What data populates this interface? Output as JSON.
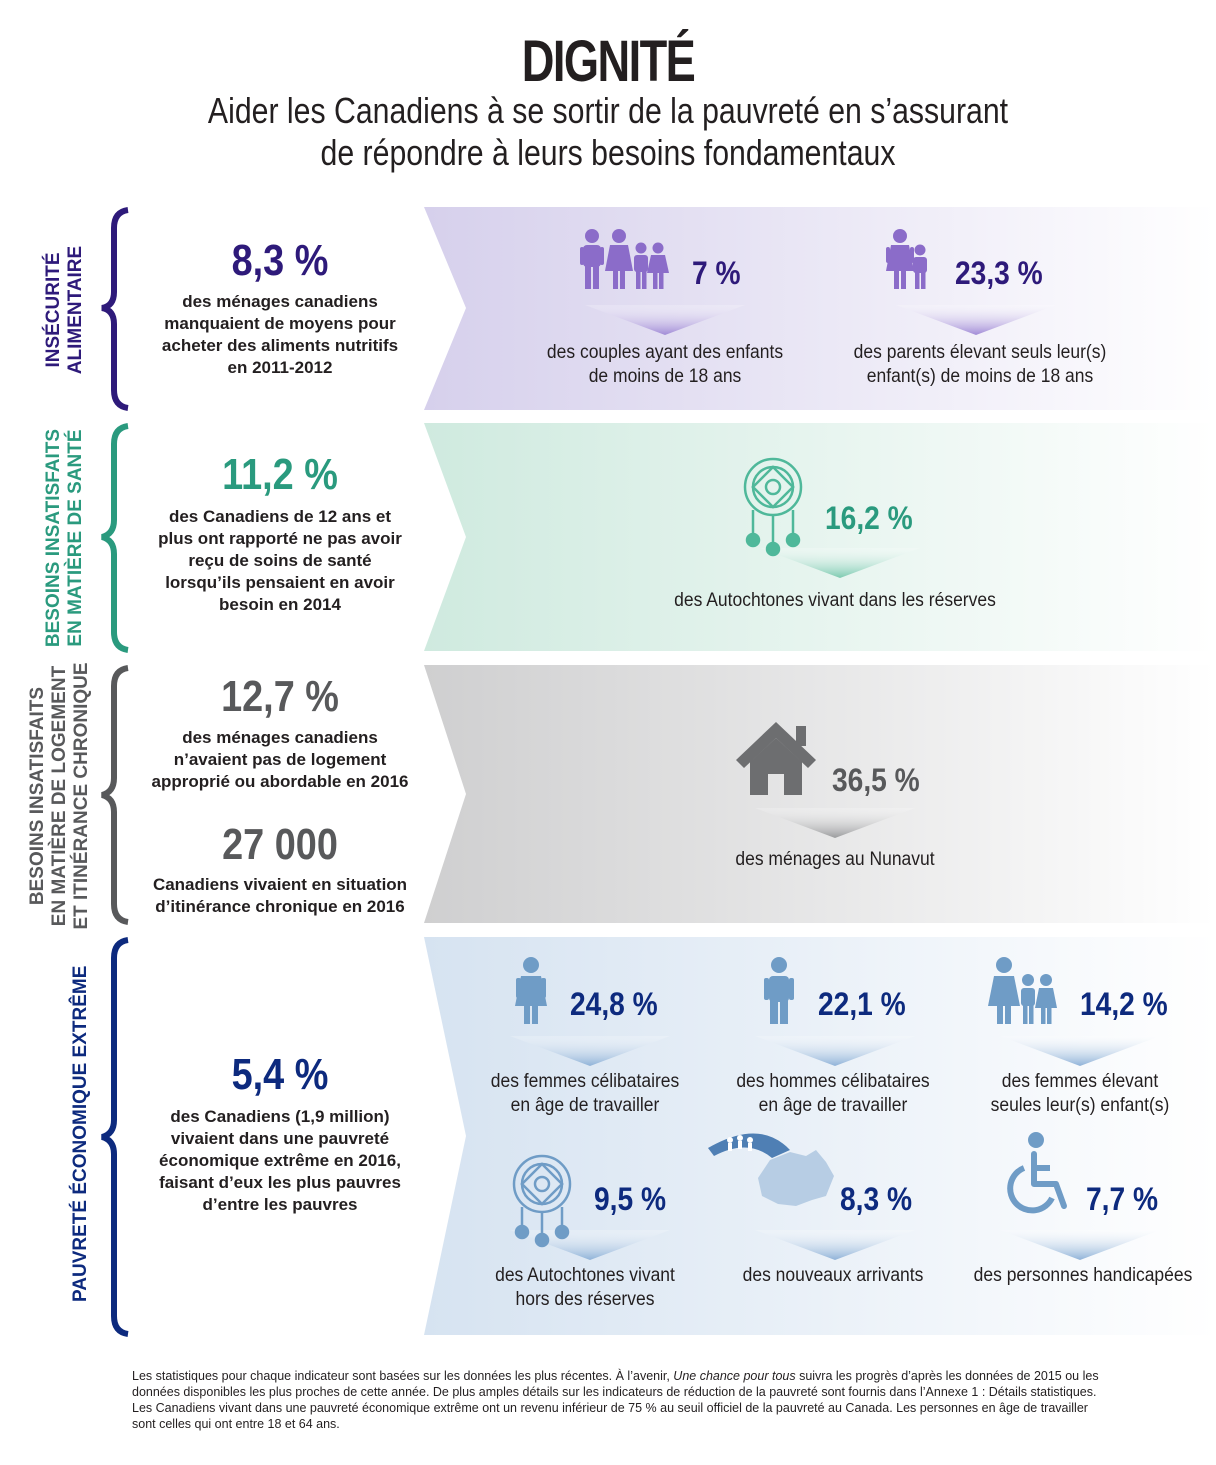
{
  "header": {
    "title": "DIGNITÉ",
    "subtitle_line1": "Aider les Canadiens à se sortir de la pauvreté en s’assurant",
    "subtitle_line2": "de répondre à leurs besoins fondamentaux"
  },
  "colors": {
    "food": "#2e1a7a",
    "health": "#2a9a7e",
    "housing": "#58595b",
    "poverty": "#0d2a7e",
    "food_icon": "#8b6cc9",
    "health_icon": "#4fb89a",
    "housing_icon": "#6d6e70",
    "poverty_icon": "#6f9cc6"
  },
  "sections": {
    "food": {
      "label_lines": [
        "INSÉCURITÉ",
        "ALIMENTAIRE"
      ],
      "big_stat": "8,3 %",
      "text_lines": [
        "des ménages canadiens",
        "manquaient de moyens pour",
        "acheter des aliments nutritifs",
        "en 2011-2012"
      ],
      "items": [
        {
          "icon": "family-icon",
          "value": "7 %",
          "desc_lines": [
            "des couples ayant des enfants",
            "de moins de 18 ans"
          ]
        },
        {
          "icon": "single-parent-icon",
          "value": "23,3 %",
          "desc_lines": [
            "des parents élevant seuls leur(s)",
            "enfant(s) de moins de 18 ans"
          ]
        }
      ]
    },
    "health": {
      "label_lines": [
        "BESOINS INSATISFAITS",
        "EN MATIÈRE DE SANTÉ"
      ],
      "big_stat": "11,2 %",
      "text_lines": [
        "des Canadiens de 12 ans et",
        "plus ont rapporté ne pas avoir",
        "reçu de soins de santé",
        "lorsqu’ils pensaient en avoir",
        "besoin en 2014"
      ],
      "items": [
        {
          "icon": "dreamcatcher-icon",
          "value": "16,2 %",
          "desc_lines": [
            "des Autochtones vivant dans les réserves"
          ]
        }
      ]
    },
    "housing": {
      "label_lines": [
        "BESOINS INSATISFAITS",
        "EN MATIÈRE DE LOGEMENT",
        "ET ITINÉRANCE CHRONIQUE"
      ],
      "big_stat": "12,7 %",
      "text_lines": [
        "des ménages canadiens",
        "n’avaient pas de logement",
        "approprié ou abordable en 2016"
      ],
      "big_stat2": "27 000",
      "text2_lines": [
        "Canadiens vivaient en situation",
        "d’itinérance chronique en 2016"
      ],
      "items": [
        {
          "icon": "house-icon",
          "value": "36,5 %",
          "desc_lines": [
            "des ménages au Nunavut"
          ]
        }
      ]
    },
    "poverty": {
      "label_lines": [
        "PAUVRETÉ ÉCONOMIQUE EXTRÊME"
      ],
      "big_stat": "5,4 %",
      "text_lines": [
        "des Canadiens (1,9 million)",
        "vivaient dans une pauvreté",
        "économique extrême en 2016,",
        "faisant d’eux les plus pauvres",
        "d’entre les pauvres"
      ],
      "items": [
        {
          "icon": "woman-icon",
          "value": "24,8 %",
          "desc_lines": [
            "des femmes célibataires",
            "en âge de travailler"
          ]
        },
        {
          "icon": "man-icon",
          "value": "22,1 %",
          "desc_lines": [
            "des hommes célibataires",
            "en âge de travailler"
          ]
        },
        {
          "icon": "mother-children-icon",
          "value": "14,2 %",
          "desc_lines": [
            "des femmes élevant",
            "seules leur(s) enfant(s)"
          ]
        },
        {
          "icon": "dreamcatcher-icon",
          "value": "9,5 %",
          "desc_lines": [
            "des Autochtones vivant",
            "hors des réserves"
          ]
        },
        {
          "icon": "canada-map-icon",
          "value": "8,3 %",
          "desc_lines": [
            "des nouveaux arrivants"
          ]
        },
        {
          "icon": "wheelchair-icon",
          "value": "7,7 %",
          "desc_lines": [
            "des personnes handicapées"
          ]
        }
      ]
    }
  },
  "footnote": {
    "part1": "Les statistiques pour chaque indicateur sont basées sur les données les plus récentes. À l’avenir, ",
    "italic": "Une chance pour tous",
    "part2": " suivra les progrès d’après les données de 2015 ou les données disponibles les plus proches de cette année. De plus amples détails sur les indicateurs de réduction de la pauvreté sont fournis dans l’Annexe 1 : Détails statistiques. Les Canadiens vivant dans une pauvreté économique extrême ont un revenu inférieur de 75 % au seuil officiel de la pauvreté au Canada. Les personnes en âge de travailler sont celles qui ont entre 18 et 64 ans."
  }
}
